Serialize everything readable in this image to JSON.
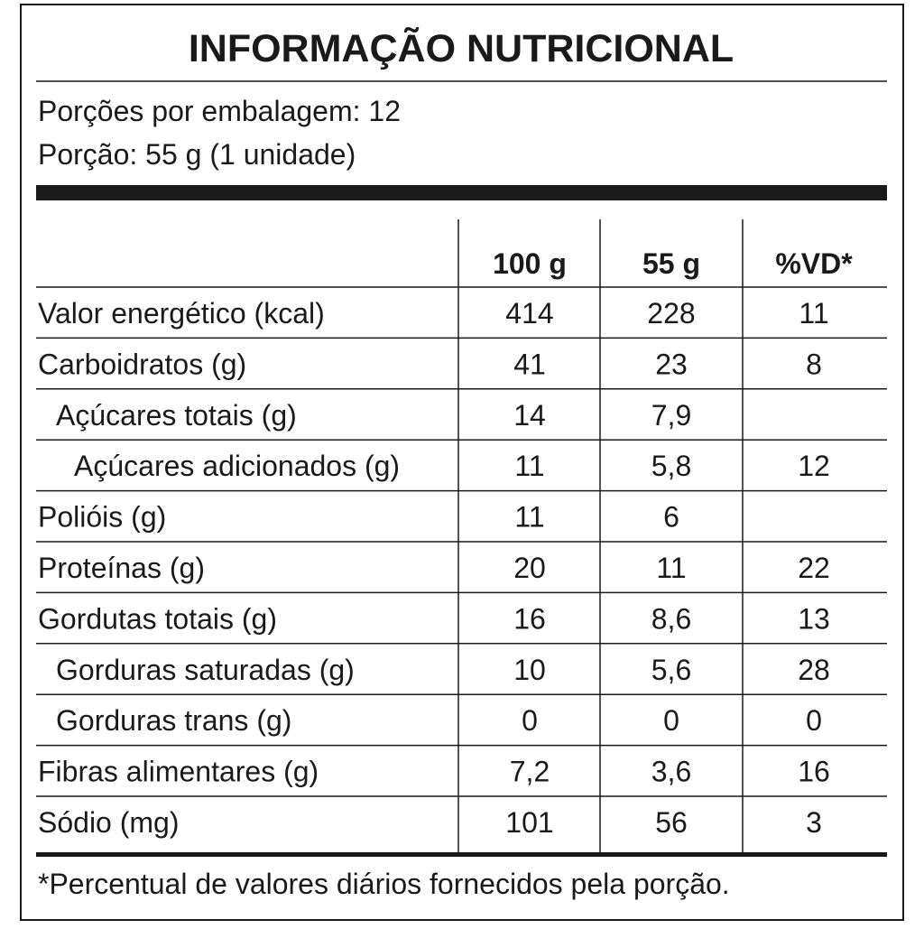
{
  "header": {
    "title": "INFORMAÇÃO NUTRICIONAL",
    "servings_per_package": "Porções por embalagem: 12",
    "serving_size": "Porção: 55 g (1 unidade)"
  },
  "table": {
    "columns": [
      "100 g",
      "55 g",
      "%VD*"
    ],
    "rows": [
      {
        "label": "Valor energético (kcal)",
        "values": [
          "414",
          "228",
          "11"
        ]
      },
      {
        "label": "Carboidratos (g)",
        "values": [
          "41",
          "23",
          "8"
        ]
      },
      {
        "label": "Açúcares totais (g)",
        "values": [
          "14",
          "7,9",
          null
        ]
      },
      {
        "label": "Açúcares adicionados (g)",
        "values": [
          "11",
          "5,8",
          "12"
        ]
      },
      {
        "label": "Polióis (g)",
        "values": [
          "11",
          "6",
          null
        ]
      },
      {
        "label": "Proteínas (g)",
        "values": [
          "20",
          "11",
          "22"
        ]
      },
      {
        "label": "Gordutas totais (g)",
        "values": [
          "16",
          "8,6",
          "13"
        ]
      },
      {
        "label": "Gorduras saturadas (g)",
        "values": [
          "10",
          "5,6",
          "28"
        ]
      },
      {
        "label": "Gorduras trans (g)",
        "values": [
          "0",
          "0",
          "0"
        ]
      },
      {
        "label": "Fibras alimentares (g)",
        "values": [
          "7,2",
          "3,6",
          "16"
        ]
      },
      {
        "label": "Sódio (mg)",
        "values": [
          "101",
          "56",
          "3"
        ]
      }
    ]
  },
  "footnote": "*Percentual de valores diários fornecidos pela porção."
}
